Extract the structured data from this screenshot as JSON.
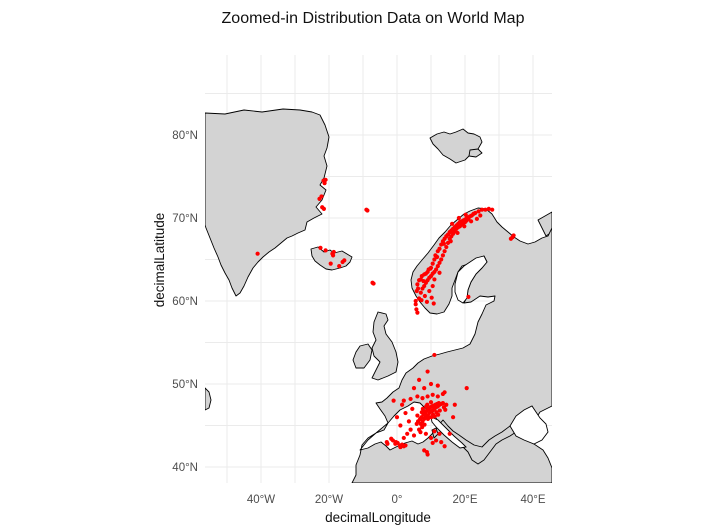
{
  "chart_data": {
    "type": "scatter",
    "title": "Zoomed-in Distribution Data on World Map",
    "xlabel": "decimalLongitude",
    "ylabel": "decimalLatitude",
    "xlim": [
      -56,
      46
    ],
    "ylim": [
      37,
      86
    ],
    "x_ticks": [
      {
        "value": -40,
        "label": "40°W"
      },
      {
        "value": -20,
        "label": "20°W"
      },
      {
        "value": 0,
        "label": "0°"
      },
      {
        "value": 20,
        "label": "20°E"
      },
      {
        "value": 40,
        "label": "40°E"
      }
    ],
    "y_ticks": [
      {
        "value": 40,
        "label": "40°N"
      },
      {
        "value": 50,
        "label": "50°N"
      },
      {
        "value": 60,
        "label": "60°N"
      },
      {
        "value": 70,
        "label": "70°N"
      },
      {
        "value": 80,
        "label": "80°N"
      }
    ],
    "grid": true,
    "colors": {
      "land": "#d3d3d3",
      "border": "#000000",
      "points": "#ff0000",
      "grid": "#ebebeb"
    },
    "points": [
      [
        -41.0,
        65.7
      ],
      [
        -22.8,
        72.3
      ],
      [
        -22.2,
        72.6
      ],
      [
        -21.3,
        74.2
      ],
      [
        -21.6,
        74.5
      ],
      [
        -21.0,
        74.6
      ],
      [
        -21.5,
        71.1
      ],
      [
        -22.0,
        71.3
      ],
      [
        -22.5,
        66.4
      ],
      [
        -21.0,
        66.1
      ],
      [
        -19.0,
        65.7
      ],
      [
        -18.6,
        65.9
      ],
      [
        -18.8,
        65.5
      ],
      [
        -16.0,
        64.7
      ],
      [
        -17.0,
        64.2
      ],
      [
        -15.5,
        64.9
      ],
      [
        -19.5,
        64.5
      ],
      [
        -9.0,
        71.0
      ],
      [
        -8.7,
        70.9
      ],
      [
        -7.2,
        62.2
      ],
      [
        -6.9,
        62.1
      ],
      [
        5.5,
        60.0
      ],
      [
        5.8,
        61.2
      ],
      [
        6.0,
        62.0
      ],
      [
        6.5,
        62.5
      ],
      [
        7.0,
        62.6
      ],
      [
        7.3,
        63.0
      ],
      [
        8.0,
        63.2
      ],
      [
        8.5,
        63.3
      ],
      [
        9.0,
        63.5
      ],
      [
        9.3,
        63.8
      ],
      [
        10.0,
        64.0
      ],
      [
        10.5,
        64.5
      ],
      [
        11.0,
        65.0
      ],
      [
        11.3,
        65.5
      ],
      [
        12.0,
        66.0
      ],
      [
        12.5,
        66.3
      ],
      [
        13.0,
        66.8
      ],
      [
        13.5,
        67.2
      ],
      [
        14.0,
        67.5
      ],
      [
        14.5,
        67.8
      ],
      [
        15.0,
        68.0
      ],
      [
        15.5,
        68.3
      ],
      [
        16.0,
        68.5
      ],
      [
        16.5,
        68.7
      ],
      [
        17.0,
        68.9
      ],
      [
        17.5,
        69.1
      ],
      [
        18.0,
        69.3
      ],
      [
        18.5,
        69.5
      ],
      [
        19.0,
        69.6
      ],
      [
        19.5,
        69.7
      ],
      [
        20.0,
        69.8
      ],
      [
        20.5,
        70.0
      ],
      [
        21.0,
        70.1
      ],
      [
        21.5,
        70.2
      ],
      [
        22.0,
        70.3
      ],
      [
        22.5,
        70.5
      ],
      [
        23.0,
        70.6
      ],
      [
        24.0,
        70.8
      ],
      [
        25.0,
        71.0
      ],
      [
        26.0,
        71.0
      ],
      [
        27.0,
        71.1
      ],
      [
        7.0,
        61.0
      ],
      [
        7.5,
        61.5
      ],
      [
        8.0,
        61.8
      ],
      [
        8.5,
        62.2
      ],
      [
        9.0,
        62.5
      ],
      [
        9.5,
        62.8
      ],
      [
        10.0,
        63.0
      ],
      [
        10.5,
        63.3
      ],
      [
        11.0,
        63.5
      ],
      [
        11.5,
        63.8
      ],
      [
        12.0,
        64.2
      ],
      [
        12.5,
        64.6
      ],
      [
        13.0,
        65.0
      ],
      [
        13.5,
        65.5
      ],
      [
        14.0,
        66.0
      ],
      [
        14.5,
        66.5
      ],
      [
        15.0,
        67.0
      ],
      [
        15.5,
        67.5
      ],
      [
        16.0,
        67.8
      ],
      [
        16.5,
        68.1
      ],
      [
        17.0,
        68.4
      ],
      [
        17.5,
        68.7
      ],
      [
        18.0,
        68.9
      ],
      [
        18.5,
        69.0
      ],
      [
        19.0,
        69.2
      ],
      [
        19.5,
        69.4
      ],
      [
        20.0,
        69.5
      ],
      [
        20.5,
        69.7
      ],
      [
        21.0,
        69.9
      ],
      [
        6.2,
        61.5
      ],
      [
        7.8,
        62.4
      ],
      [
        9.8,
        63.9
      ],
      [
        11.8,
        65.3
      ],
      [
        13.8,
        66.9
      ],
      [
        15.8,
        67.2
      ],
      [
        17.8,
        68.2
      ],
      [
        19.8,
        69.0
      ],
      [
        21.8,
        69.6
      ],
      [
        16.2,
        69.3
      ],
      [
        18.2,
        70.0
      ],
      [
        20.2,
        70.4
      ],
      [
        23.5,
        69.9
      ],
      [
        24.5,
        70.3
      ],
      [
        28.0,
        71.0
      ],
      [
        5.5,
        59.6
      ],
      [
        5.7,
        59.0
      ],
      [
        6.0,
        58.6
      ],
      [
        6.5,
        60.3
      ],
      [
        8.2,
        60.6
      ],
      [
        9.5,
        61.2
      ],
      [
        10.5,
        61.8
      ],
      [
        11.0,
        62.6
      ],
      [
        12.5,
        63.4
      ],
      [
        8.8,
        59.9
      ],
      [
        10.2,
        60.4
      ],
      [
        10.8,
        59.7
      ],
      [
        7.2,
        60.1
      ],
      [
        34.0,
        67.7
      ],
      [
        33.5,
        67.5
      ],
      [
        34.3,
        67.9
      ],
      [
        21.0,
        60.5
      ],
      [
        -1.7,
        43.4
      ],
      [
        -1.2,
        43.2
      ],
      [
        -0.5,
        42.8
      ],
      [
        0.2,
        42.9
      ],
      [
        0.8,
        42.6
      ],
      [
        1.5,
        42.7
      ],
      [
        2.0,
        42.5
      ],
      [
        -3.0,
        43.0
      ],
      [
        -2.8,
        42.8
      ],
      [
        -0.3,
        43.0
      ],
      [
        1.0,
        42.4
      ],
      [
        2.5,
        42.6
      ],
      [
        7.0,
        45.2
      ],
      [
        7.5,
        45.5
      ],
      [
        8.0,
        45.8
      ],
      [
        8.5,
        46.0
      ],
      [
        9.0,
        46.2
      ],
      [
        9.5,
        46.5
      ],
      [
        10.0,
        46.7
      ],
      [
        10.5,
        46.8
      ],
      [
        11.0,
        47.0
      ],
      [
        11.5,
        47.2
      ],
      [
        12.0,
        47.3
      ],
      [
        12.5,
        47.5
      ],
      [
        13.0,
        47.6
      ],
      [
        13.5,
        47.7
      ],
      [
        7.2,
        46.0
      ],
      [
        7.8,
        46.3
      ],
      [
        8.3,
        46.5
      ],
      [
        8.8,
        46.8
      ],
      [
        9.3,
        47.0
      ],
      [
        9.8,
        47.2
      ],
      [
        10.3,
        47.3
      ],
      [
        10.8,
        47.4
      ],
      [
        11.3,
        47.5
      ],
      [
        11.8,
        47.6
      ],
      [
        12.3,
        47.7
      ],
      [
        6.8,
        45.8
      ],
      [
        7.3,
        46.6
      ],
      [
        8.6,
        47.3
      ],
      [
        9.6,
        46.0
      ],
      [
        10.6,
        46.3
      ],
      [
        11.6,
        46.6
      ],
      [
        12.6,
        46.8
      ],
      [
        6.5,
        44.5
      ],
      [
        6.9,
        44.2
      ],
      [
        7.4,
        44.8
      ],
      [
        8.1,
        45.1
      ],
      [
        6.2,
        45.5
      ],
      [
        5.8,
        45.2
      ],
      [
        6.0,
        46.2
      ],
      [
        13.8,
        47.2
      ],
      [
        14.5,
        47.5
      ],
      [
        14.2,
        46.9
      ],
      [
        12.1,
        46.3
      ],
      [
        11.1,
        46.1
      ],
      [
        10.1,
        46.0
      ],
      [
        9.1,
        45.8
      ],
      [
        8.1,
        46.7
      ],
      [
        7.6,
        47.0
      ],
      [
        8.9,
        47.5
      ],
      [
        10.0,
        47.8
      ],
      [
        3.5,
        45.5
      ],
      [
        4.0,
        44.5
      ],
      [
        3.0,
        44.0
      ],
      [
        5.0,
        43.8
      ],
      [
        2.5,
        46.5
      ],
      [
        4.5,
        47.0
      ],
      [
        1.5,
        47.5
      ],
      [
        2.0,
        48.0
      ],
      [
        4.0,
        48.2
      ],
      [
        6.0,
        48.5
      ],
      [
        7.5,
        48.3
      ],
      [
        9.0,
        48.5
      ],
      [
        10.5,
        48.7
      ],
      [
        12.0,
        48.5
      ],
      [
        13.5,
        48.8
      ],
      [
        8.0,
        49.5
      ],
      [
        10.0,
        50.0
      ],
      [
        12.0,
        49.8
      ],
      [
        14.0,
        49.0
      ],
      [
        6.5,
        50.5
      ],
      [
        5.0,
        49.5
      ],
      [
        -1.0,
        48.0
      ],
      [
        0.0,
        46.0
      ],
      [
        1.0,
        45.0
      ],
      [
        2.0,
        43.5
      ],
      [
        9.0,
        51.5
      ],
      [
        11.0,
        53.5
      ],
      [
        8.5,
        44.0
      ],
      [
        10.0,
        43.5
      ],
      [
        11.0,
        44.3
      ],
      [
        12.5,
        44.0
      ],
      [
        13.0,
        43.0
      ],
      [
        11.5,
        43.2
      ],
      [
        10.5,
        42.9
      ],
      [
        14.0,
        42.5
      ],
      [
        8.0,
        42.0
      ],
      [
        8.8,
        41.8
      ],
      [
        9.0,
        41.5
      ],
      [
        15.5,
        44.0
      ],
      [
        16.5,
        46.0
      ],
      [
        17.0,
        47.5
      ],
      [
        20.5,
        49.5
      ]
    ]
  }
}
